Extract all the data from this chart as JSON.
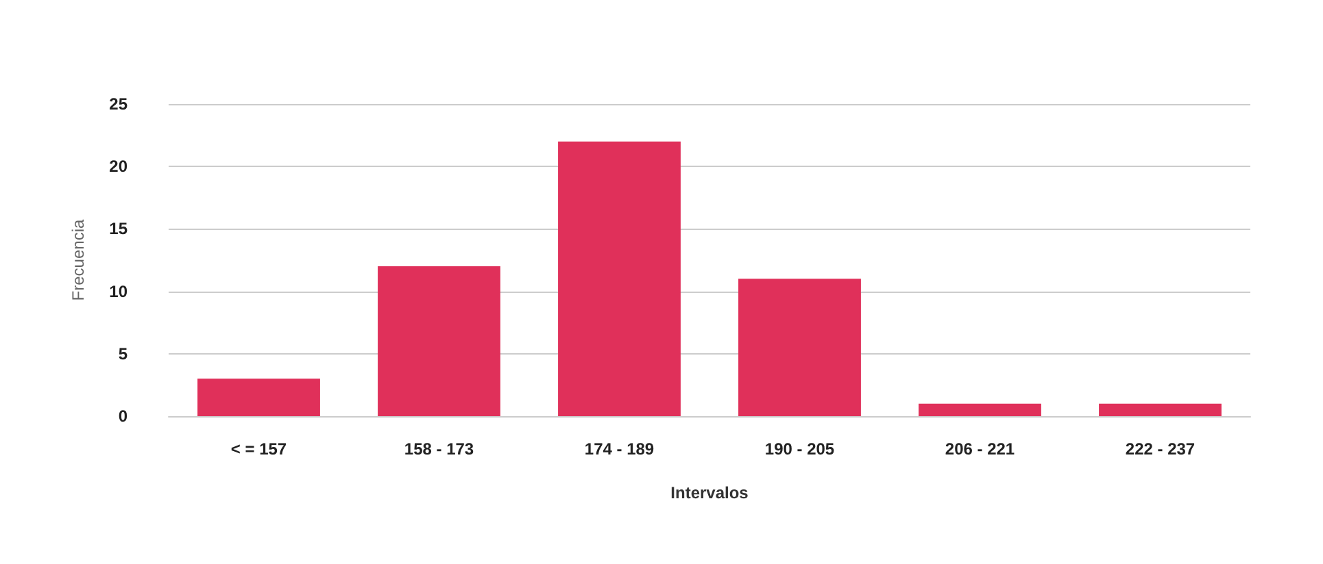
{
  "chart_data": {
    "type": "bar",
    "xlabel": "Intervalos",
    "ylabel": "Frecuencia",
    "categories": [
      "< = 157",
      "158 - 173",
      "174 - 189",
      "190 - 205",
      "206 - 221",
      "222 - 237"
    ],
    "values": [
      3,
      12,
      22,
      11,
      1,
      1
    ],
    "color": "#e0305a",
    "ylim": [
      0,
      25
    ],
    "yticks": [
      0,
      5,
      10,
      15,
      20,
      25
    ],
    "grid": "y"
  }
}
